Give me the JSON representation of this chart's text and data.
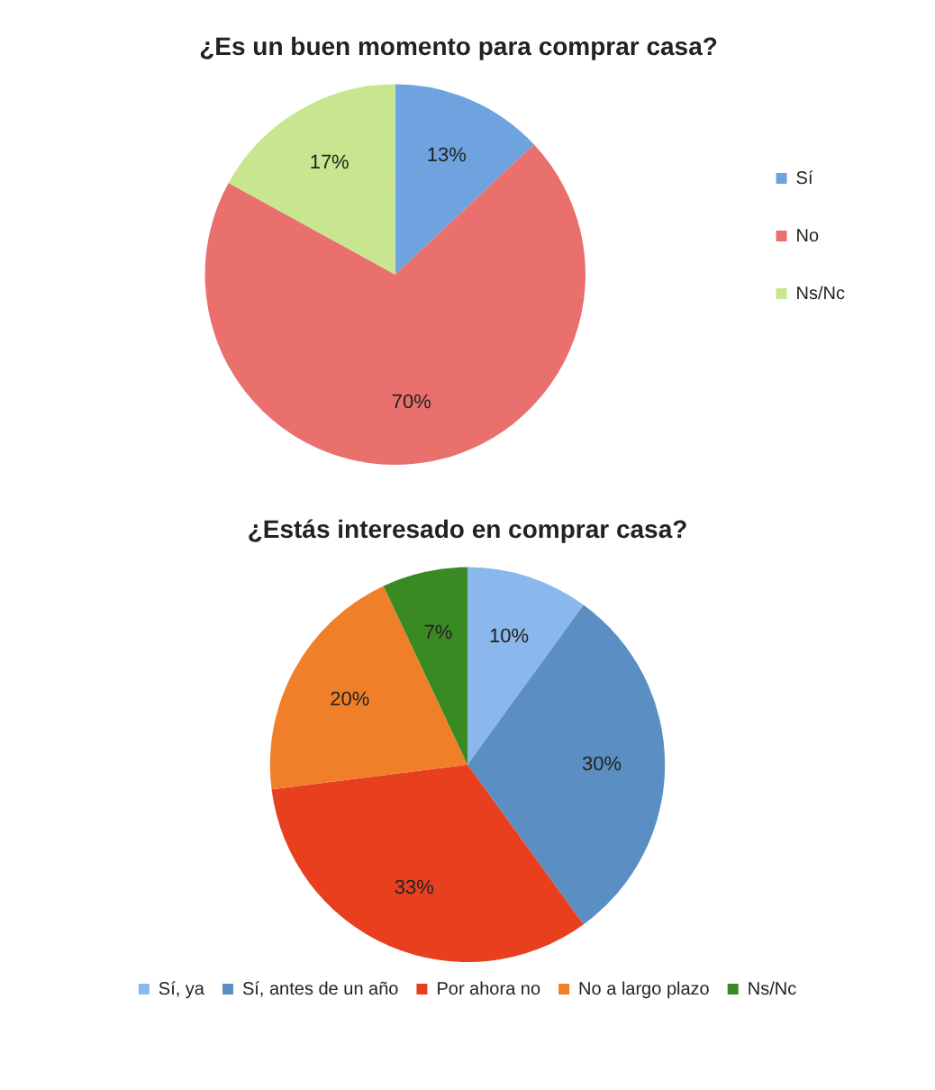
{
  "chart_data": [
    {
      "type": "pie",
      "title": "¿Es un buen momento para comprar casa?",
      "categories": [
        "Sí",
        "No",
        "Ns/Nc"
      ],
      "values": [
        13,
        70,
        17
      ],
      "colors": [
        "#6fa3e0",
        "#e9706d",
        "#c8e68f"
      ],
      "value_labels": [
        "13%",
        "70%",
        "17%"
      ],
      "legend": "right"
    },
    {
      "type": "pie",
      "title": "¿Estás interesado en comprar casa?",
      "categories": [
        "Sí, ya",
        "Sí, antes de un año",
        "Por ahora no",
        "No a largo plazo",
        "Ns/Nc"
      ],
      "values": [
        10,
        30,
        33,
        20,
        7
      ],
      "colors": [
        "#8ab8ec",
        "#5b8fc4",
        "#e8401f",
        "#f07f2a",
        "#3a8a23"
      ],
      "value_labels": [
        "10%",
        "30%",
        "33%",
        "20%",
        "7%"
      ],
      "legend": "bottom"
    }
  ]
}
